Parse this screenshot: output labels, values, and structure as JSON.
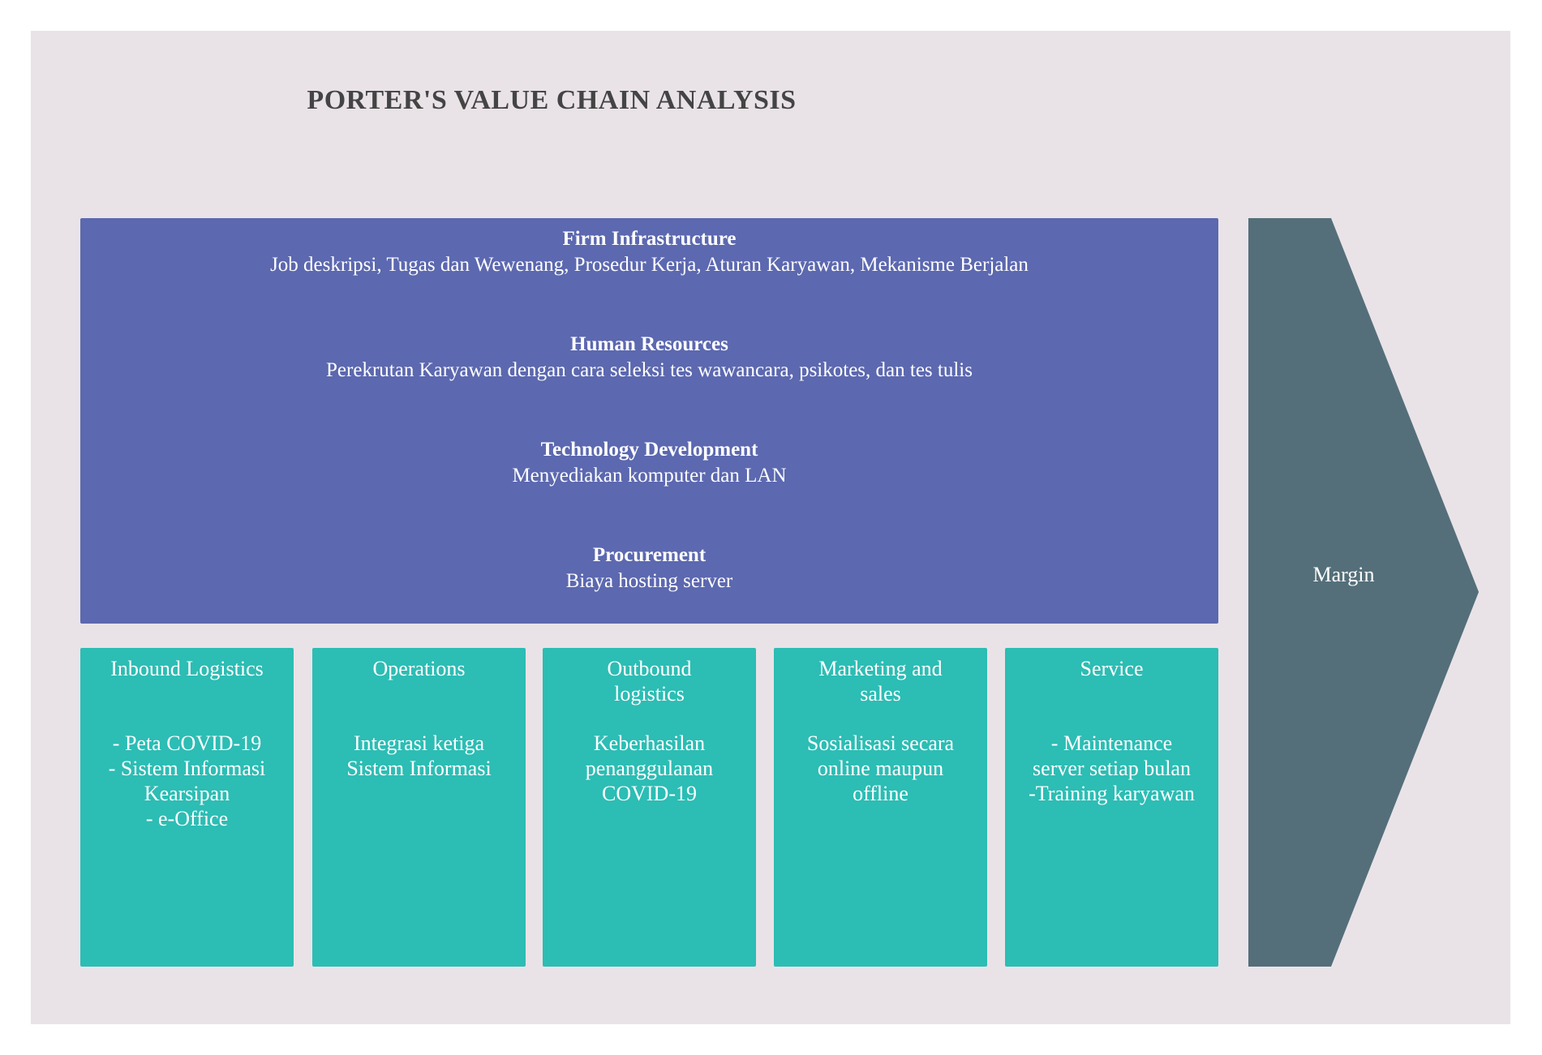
{
  "title": "PORTER'S VALUE  CHAIN ANALYSIS",
  "colors": {
    "background": "#E9E3E8",
    "support": "#5C68AF",
    "primary": "#2CBDB4",
    "margin": "#546F7A",
    "title": "#444444"
  },
  "support_activities": [
    {
      "heading": "Firm Infrastructure",
      "description": "Job deskripsi, Tugas dan Wewenang, Prosedur Kerja, Aturan Karyawan, Mekanisme Berjalan"
    },
    {
      "heading": "Human  Resources",
      "description": "Perekrutan Karyawan dengan cara seleksi tes wawancara, psikotes, dan tes tulis"
    },
    {
      "heading": "Technology  Development",
      "description": "Menyediakan komputer dan LAN"
    },
    {
      "heading": "Procurement",
      "description": "Biaya hosting server"
    }
  ],
  "primary_activities": [
    {
      "heading": "Inbound   Logistics",
      "description": "- Peta COVID-19\n- Sistem Informasi Kearsipan\n- e-Office"
    },
    {
      "heading": "Operations",
      "description": "Integrasi ketiga\nSistem Informasi"
    },
    {
      "heading": "Outbound\nlogistics",
      "description": "Keberhasilan\npenanggulanan\nCOVID-19"
    },
    {
      "heading": "Marketing   and\nsales",
      "description": "Sosialisasi secara\nonline maupun\noffline"
    },
    {
      "heading": "Service",
      "description": "- Maintenance\nserver setiap bulan\n-Training karyawan"
    }
  ],
  "margin_label": "Margin"
}
